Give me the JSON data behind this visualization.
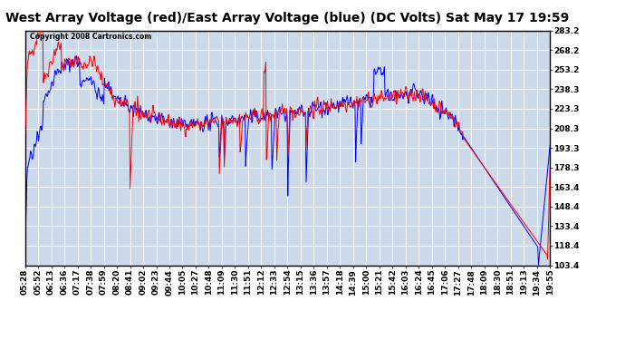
{
  "title": "West Array Voltage (red)/East Array Voltage (blue) (DC Volts) Sat May 17 19:59",
  "copyright": "Copyright 2008 Cartronics.com",
  "y_min": 103.4,
  "y_max": 283.2,
  "y_ticks": [
    103.4,
    118.4,
    133.4,
    148.4,
    163.4,
    178.3,
    193.3,
    208.3,
    223.3,
    238.3,
    253.2,
    268.2,
    283.2
  ],
  "x_labels": [
    "05:28",
    "05:52",
    "06:13",
    "06:36",
    "07:17",
    "07:38",
    "07:59",
    "08:20",
    "08:41",
    "09:02",
    "09:23",
    "09:44",
    "10:05",
    "10:27",
    "10:48",
    "11:09",
    "11:30",
    "11:51",
    "12:12",
    "12:33",
    "12:54",
    "13:15",
    "13:36",
    "13:57",
    "14:18",
    "14:39",
    "15:00",
    "15:21",
    "15:42",
    "16:03",
    "16:24",
    "16:45",
    "17:06",
    "17:27",
    "17:48",
    "18:09",
    "18:30",
    "18:51",
    "19:13",
    "19:34",
    "19:55"
  ],
  "background_color": "#ffffff",
  "plot_background": "#ccd9e8",
  "grid_color": "#ffffff",
  "red_color": "#ff0000",
  "blue_color": "#0000ff",
  "title_fontsize": 10,
  "tick_fontsize": 6.5,
  "line_width": 0.7
}
